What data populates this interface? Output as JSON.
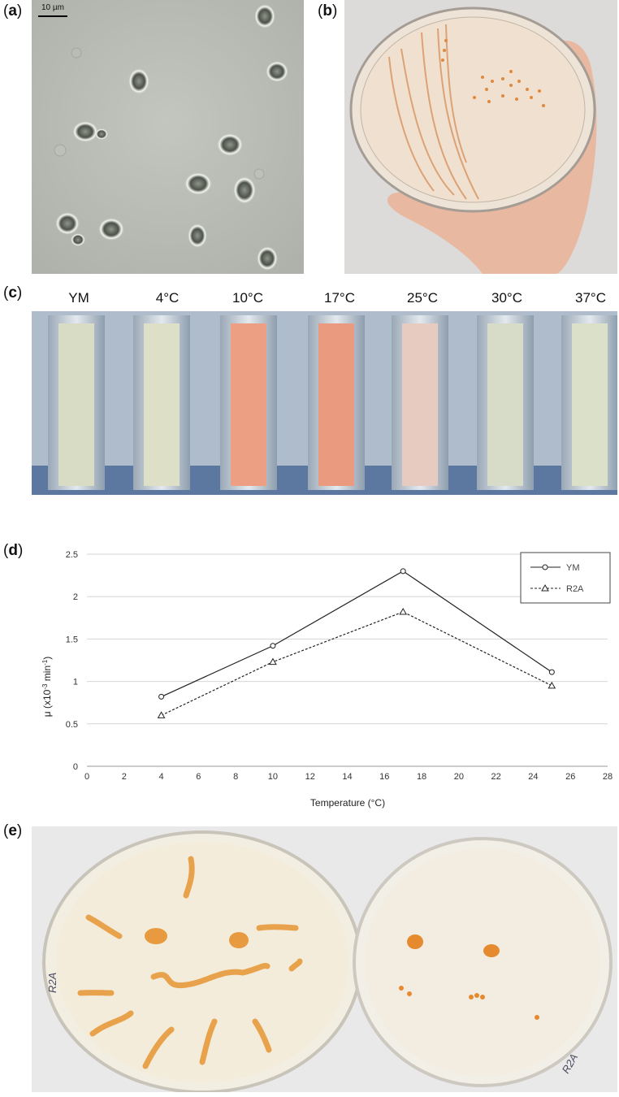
{
  "panels": {
    "a": {
      "letter": "a",
      "scale_bar": "10 µm"
    },
    "b": {
      "letter": "b"
    },
    "c": {
      "letter": "c",
      "tube_labels": [
        "YM",
        "4°C",
        "10°C",
        "17°C",
        "25°C",
        "30°C",
        "37°C"
      ]
    },
    "d": {
      "letter": "d"
    },
    "e": {
      "letter": "e",
      "plate_left_mark": "R2A",
      "plate_right_mark": "R2A"
    }
  },
  "chart_data": {
    "type": "line",
    "title": "",
    "xlabel": "Temperature (°C)",
    "ylabel_main": "μ (x10",
    "ylabel_sup1": "-3",
    "ylabel_mid": " min",
    "ylabel_sup2": "-1",
    "ylabel_end": ")",
    "xlim": [
      0,
      28
    ],
    "ylim": [
      0,
      2.5
    ],
    "xticks": [
      "0",
      "2",
      "4",
      "6",
      "8",
      "10",
      "12",
      "14",
      "16",
      "18",
      "20",
      "22",
      "24",
      "26",
      "28"
    ],
    "yticks": [
      "0",
      "0.5",
      "1",
      "1.5",
      "2",
      "2.5"
    ],
    "series": [
      {
        "name": "YM",
        "x": [
          4,
          10,
          17,
          25
        ],
        "values": [
          0.82,
          1.42,
          2.3,
          1.11
        ],
        "marker": "circle",
        "dash": "solid"
      },
      {
        "name": "R2A",
        "x": [
          4,
          10,
          17,
          25
        ],
        "values": [
          0.6,
          1.23,
          1.82,
          0.95
        ],
        "marker": "triangle",
        "dash": "dashed"
      }
    ],
    "legend": "top-right"
  }
}
